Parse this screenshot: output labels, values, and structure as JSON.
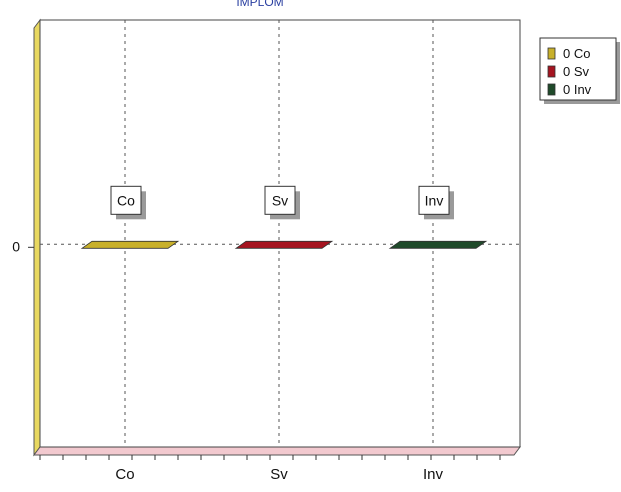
{
  "chart_data": {
    "type": "bar",
    "title": "IMPLOM",
    "categories": [
      "Co",
      "Sv",
      "Inv"
    ],
    "values": [
      0,
      0,
      0
    ],
    "colors": [
      "#c8b02a",
      "#a51420",
      "#1f4a2a"
    ],
    "ylim": [
      -1,
      1
    ],
    "y_ticks": [
      0
    ],
    "y_tick_labels": [
      "0"
    ],
    "grid": true,
    "legend": {
      "position": "top-right",
      "entries": [
        "0 Co",
        "0 Sv",
        "0 Inv"
      ]
    },
    "bar_labels": [
      "Co",
      "Sv",
      "Inv"
    ]
  }
}
